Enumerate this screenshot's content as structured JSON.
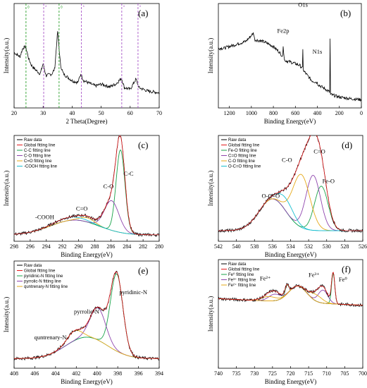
{
  "chart_data": [
    {
      "id": "a",
      "type": "line",
      "panel_label": "(a)",
      "xlabel": "2 Theta(Degree)",
      "ylabel": "Intensity(a.u.)",
      "xlim": [
        20,
        70
      ],
      "xticks": [
        20,
        30,
        40,
        50,
        60,
        70
      ],
      "series": [
        {
          "color": "#000000",
          "points": [
            [
              20,
              0.55
            ],
            [
              22,
              0.5
            ],
            [
              23,
              0.6
            ],
            [
              24,
              0.62
            ],
            [
              25,
              0.48
            ],
            [
              26,
              0.4
            ],
            [
              27,
              0.36
            ],
            [
              29,
              0.3
            ],
            [
              30,
              0.42
            ],
            [
              31,
              0.28
            ],
            [
              33,
              0.3
            ],
            [
              34,
              0.36
            ],
            [
              35,
              0.8
            ],
            [
              36,
              0.4
            ],
            [
              37,
              0.3
            ],
            [
              40,
              0.22
            ],
            [
              42,
              0.2
            ],
            [
              43,
              0.3
            ],
            [
              44,
              0.22
            ],
            [
              48,
              0.16
            ],
            [
              50,
              0.18
            ],
            [
              53,
              0.15
            ],
            [
              55,
              0.18
            ],
            [
              57,
              0.25
            ],
            [
              58,
              0.14
            ],
            [
              60,
              0.12
            ],
            [
              62,
              0.24
            ],
            [
              63,
              0.14
            ],
            [
              66,
              0.1
            ],
            [
              70,
              0.08
            ]
          ]
        }
      ],
      "reference_lines": [
        {
          "x": 24.1,
          "color": "#2ca02c",
          "label": "◊"
        },
        {
          "x": 30.2,
          "color": "#a855c8",
          "label": "*"
        },
        {
          "x": 35.5,
          "color": "#2ca02c",
          "label": "◊"
        },
        {
          "x": 43.2,
          "color": "#a855c8",
          "label": "*"
        },
        {
          "x": 57.1,
          "color": "#a855c8",
          "label": "*"
        },
        {
          "x": 62.7,
          "color": "#a855c8",
          "label": "*"
        }
      ]
    },
    {
      "id": "b",
      "type": "line",
      "panel_label": "(b)",
      "xlabel": "Binding Energy(eV)",
      "ylabel": "Intensity(a.u.)",
      "xlim": [
        1300,
        0
      ],
      "xticks": [
        1200,
        1000,
        800,
        600,
        400,
        200,
        0
      ],
      "series": [
        {
          "color": "#000000",
          "points": [
            [
              1300,
              0.6
            ],
            [
              1250,
              0.6
            ],
            [
              1200,
              0.62
            ],
            [
              1150,
              0.64
            ],
            [
              1100,
              0.66
            ],
            [
              1050,
              0.68
            ],
            [
              1000,
              0.75
            ],
            [
              980,
              0.78
            ],
            [
              970,
              0.7
            ],
            [
              900,
              0.68
            ],
            [
              860,
              0.66
            ],
            [
              800,
              0.62
            ],
            [
              750,
              0.56
            ],
            [
              712,
              0.5
            ],
            [
              711,
              0.64
            ],
            [
              700,
              0.46
            ],
            [
              650,
              0.44
            ],
            [
              600,
              0.42
            ],
            [
              560,
              0.4
            ],
            [
              533,
              0.36
            ],
            [
              531,
              0.9
            ],
            [
              528,
              0.34
            ],
            [
              450,
              0.22
            ],
            [
              402,
              0.2
            ],
            [
              400,
              0.44
            ],
            [
              398,
              0.18
            ],
            [
              350,
              0.14
            ],
            [
              300,
              0.1
            ],
            [
              286,
              0.08
            ],
            [
              285,
              1.0
            ],
            [
              283,
              0.06
            ],
            [
              200,
              0.03
            ],
            [
              100,
              0.01
            ],
            [
              0,
              0.0
            ]
          ]
        }
      ],
      "annotations": [
        {
          "text": "C1s",
          "x": 285,
          "y": 1.05
        },
        {
          "text": "O1s",
          "x": 531,
          "y": 0.97
        },
        {
          "text": "N1s",
          "x": 400,
          "y": 0.52
        },
        {
          "text": "Fe2p",
          "x": 711,
          "y": 0.72
        }
      ]
    },
    {
      "id": "c",
      "type": "line",
      "panel_label": "(c)",
      "xlabel": "Binding Energy(eV)",
      "ylabel": "Intensity(a.u.)",
      "xlim": [
        298,
        280
      ],
      "xticks": [
        298,
        296,
        294,
        292,
        290,
        288,
        286,
        284,
        282,
        280
      ],
      "baseline": 0.06,
      "tail": [
        290.5,
        3.0,
        0.014
      ],
      "legend": [
        "Raw data",
        "Global fitting line",
        "C-C fitting line",
        "C-O fitting line",
        "C=O fitting line",
        "-COOH fitting line"
      ],
      "colors": [
        "#000000",
        "#e41a1c",
        "#1aa34a",
        "#8e44ad",
        "#e6a817",
        "#17becf"
      ],
      "peaks": [
        {
          "name": "C-C",
          "center": 284.8,
          "amp": 0.78,
          "width": 0.55,
          "color": "#1aa34a"
        },
        {
          "name": "C-O",
          "center": 285.9,
          "amp": 0.28,
          "width": 0.9,
          "color": "#8e44ad"
        },
        {
          "name": "C=O",
          "center": 288.9,
          "amp": 0.04,
          "width": 0.9,
          "color": "#e6a817"
        },
        {
          "name": "-COOH",
          "center": 291.0,
          "amp": 0.03,
          "width": 1.8,
          "color": "#17becf"
        }
      ],
      "annotations": [
        {
          "text": "C-C",
          "x": 283.8,
          "y": 0.62
        },
        {
          "text": "C-O",
          "x": 286.3,
          "y": 0.5
        },
        {
          "text": "C=O",
          "x": 289.6,
          "y": 0.29
        },
        {
          "text": "-COOH",
          "x": 294.2,
          "y": 0.21
        }
      ]
    },
    {
      "id": "d",
      "type": "line",
      "panel_label": "(d)",
      "xlabel": "Binding Energy(eV)",
      "ylabel": "Intensity(a.u.)",
      "xlim": [
        542,
        526
      ],
      "xticks": [
        542,
        540,
        538,
        536,
        534,
        532,
        530,
        528,
        526
      ],
      "baseline": 0.1,
      "tail": [
        536,
        1.5,
        0.03
      ],
      "legend": [
        "Raw data",
        "Global fitting line",
        "Fe-O fitting line",
        "C=O fitting line",
        "C-O fitting line",
        "O-C=O fitting line"
      ],
      "colors": [
        "#000000",
        "#e41a1c",
        "#1aa34a",
        "#8e44ad",
        "#e6a817",
        "#17becf"
      ],
      "peaks": [
        {
          "name": "Fe-O",
          "center": 530.6,
          "amp": 0.42,
          "width": 0.75,
          "color": "#1aa34a"
        },
        {
          "name": "C=O",
          "center": 531.5,
          "amp": 0.52,
          "width": 0.8,
          "color": "#8e44ad"
        },
        {
          "name": "C-O",
          "center": 532.8,
          "amp": 0.5,
          "width": 0.95,
          "color": "#e6a817"
        },
        {
          "name": "O-C=O",
          "center": 534.5,
          "amp": 0.12,
          "width": 0.9,
          "color": "#17becf"
        }
      ],
      "annotations": [
        {
          "text": "C=O",
          "x": 530.8,
          "y": 0.83
        },
        {
          "text": "Fe-O",
          "x": 529.8,
          "y": 0.55
        },
        {
          "text": "C-O",
          "x": 534.4,
          "y": 0.75
        },
        {
          "text": "O-C=O",
          "x": 536.2,
          "y": 0.41
        }
      ]
    },
    {
      "id": "e",
      "type": "line",
      "panel_label": "(e)",
      "xlabel": "Binding Energy(eV)",
      "ylabel": "Intensity(a.u.)",
      "xlim": [
        408,
        394
      ],
      "xticks": [
        408,
        406,
        404,
        402,
        400,
        398,
        396,
        394
      ],
      "baseline": 0.09,
      "tail": [
        401,
        2.0,
        0.02
      ],
      "legend": [
        "Raw data",
        "Global fitting line",
        "pyridinic-N fitting line",
        "pyrrolic-N fitting line",
        "quntrenary-N fitting line"
      ],
      "colors": [
        "#000000",
        "#e41a1c",
        "#1aa34a",
        "#8e44ad",
        "#e6a817"
      ],
      "peaks": [
        {
          "name": "pyridinic-N",
          "center": 398.1,
          "amp": 0.72,
          "width": 0.6,
          "color": "#1aa34a"
        },
        {
          "name": "pyrrolic-N",
          "center": 399.9,
          "amp": 0.3,
          "width": 0.75,
          "color": "#8e44ad"
        },
        {
          "name": "quntrenary-N",
          "center": 402.2,
          "amp": 0.09,
          "width": 0.7,
          "color": "#e6a817"
        }
      ],
      "annotations": [
        {
          "text": "pyridinic-N",
          "x": 396.5,
          "y": 0.69
        },
        {
          "text": "pyrrolic-N",
          "x": 401.0,
          "y": 0.51
        },
        {
          "text": "quntrenary-N",
          "x": 404.5,
          "y": 0.27
        }
      ]
    },
    {
      "id": "f",
      "type": "line",
      "panel_label": "(f)",
      "xlabel": "Binding Energy(eV)",
      "ylabel": "Intensity(a.u.)",
      "xlim": [
        740,
        700
      ],
      "xticks": [
        740,
        735,
        730,
        725,
        720,
        715,
        710,
        705,
        700
      ],
      "baseline": 0.58,
      "slope": 0.0015,
      "tail": [
        718,
        2.5,
        0.015
      ],
      "legend": [
        "Raw data",
        "Global fitting line",
        "Fe⁰ fitting line",
        "Fe³⁺ fitting line",
        "Fe²⁺ fitting line"
      ],
      "colors": [
        "#000000",
        "#e41a1c",
        "#1aa34a",
        "#8e44ad",
        "#e6a817"
      ],
      "peaks": [
        {
          "name": "Fe0",
          "center": 708.2,
          "amp": 0.28,
          "width": 0.45,
          "color": "#1aa34a"
        },
        {
          "name": "Fe0b",
          "center": 721.0,
          "amp": 0.08,
          "width": 0.5,
          "color": "#1aa34a"
        },
        {
          "name": "Fe3+",
          "center": 711.0,
          "amp": 0.12,
          "width": 1.3,
          "color": "#8e44ad"
        },
        {
          "name": "Fe2+",
          "center": 724.5,
          "amp": 0.06,
          "width": 1.6,
          "color": "#8e44ad"
        },
        {
          "name": "Fe3+sat",
          "center": 713.0,
          "amp": 0.06,
          "width": 1.8,
          "color": "#e6a817"
        },
        {
          "name": "Fe2+sat",
          "center": 726.0,
          "amp": 0.04,
          "width": 2.0,
          "color": "#e6a817"
        }
      ],
      "annotations": [
        {
          "text": "Fe²⁺",
          "x": 727.0,
          "y": 0.81
        },
        {
          "text": "Fe³⁺",
          "x": 713.5,
          "y": 0.84
        },
        {
          "text": "Fe⁰",
          "x": 705.5,
          "y": 0.8
        }
      ]
    }
  ]
}
